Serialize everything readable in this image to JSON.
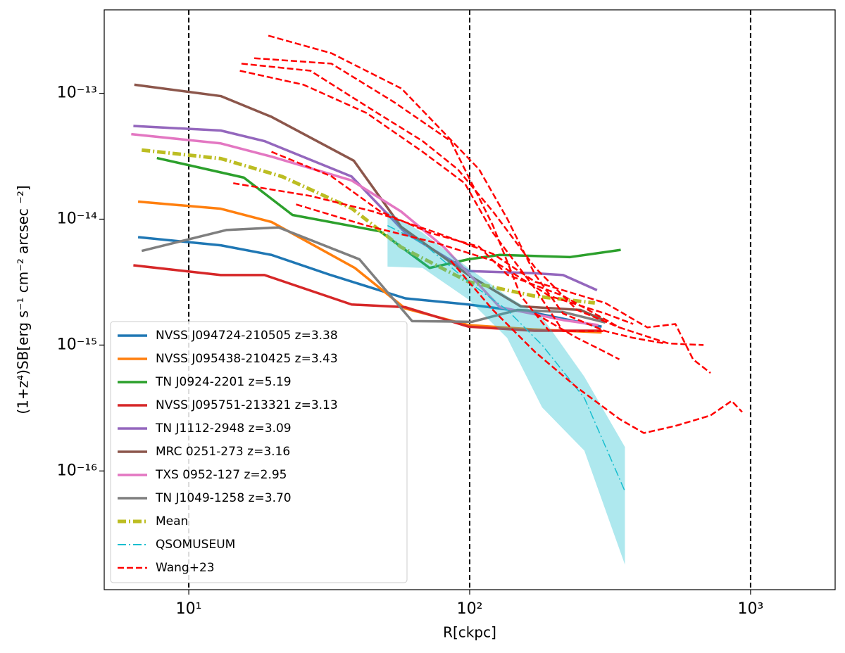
{
  "chart_data": {
    "type": "line",
    "xlabel": "R[ckpc]",
    "ylabel": "(1+z⁴)SB[erg s⁻¹ cm⁻² arcsec ⁻²]",
    "xscale": "log",
    "yscale": "log",
    "xlim": [
      5,
      2000
    ],
    "ylim": [
      1.14e-17,
      4.6e-13
    ],
    "xticks": [
      {
        "value": 10,
        "label": "10¹"
      },
      {
        "value": 100,
        "label": "10²"
      },
      {
        "value": 1000,
        "label": "10³"
      }
    ],
    "yticks": [
      {
        "value": 1e-16,
        "label": "10⁻¹⁶"
      },
      {
        "value": 1e-15,
        "label": "10⁻¹⁵"
      },
      {
        "value": 1e-14,
        "label": "10⁻¹⁴"
      },
      {
        "value": 1e-13,
        "label": "10⁻¹³"
      }
    ],
    "vlines": [
      10,
      100,
      1000
    ],
    "legend": "lower left",
    "series": [
      {
        "name": "NVSS J094724-210505 z=3.38",
        "color": "#1f77b4",
        "linestyle": "solid",
        "x": [
          6.6,
          13,
          19.7,
          32,
          59,
          99,
          170,
          295
        ],
        "values": [
          7.2e-15,
          6.2e-15,
          5.2e-15,
          3.6e-15,
          2.35e-15,
          2.1e-15,
          1.8e-15,
          1.4e-15
        ]
      },
      {
        "name": "NVSS J095438-210425 z=3.43",
        "color": "#ff7f0e",
        "linestyle": "solid",
        "x": [
          6.6,
          13,
          19.7,
          39,
          59,
          99,
          170,
          295
        ],
        "values": [
          1.38e-14,
          1.21e-14,
          9.5e-15,
          4.1e-15,
          1.95e-15,
          1.44e-15,
          1.33e-15,
          1.26e-15
        ]
      },
      {
        "name": "TN J0924-2201 z=5.19",
        "color": "#2ca02c",
        "linestyle": "solid",
        "x": [
          7.7,
          15.7,
          23.4,
          48,
          72,
          99,
          128,
          228,
          345
        ],
        "values": [
          3.06e-14,
          2.14e-14,
          1.08e-14,
          8e-15,
          4.1e-15,
          4.8e-15,
          5.2e-15,
          5e-15,
          5.7e-15
        ]
      },
      {
        "name": "NVSS J095751-213321 z=3.13",
        "color": "#d62728",
        "linestyle": "solid",
        "x": [
          6.35,
          13,
          18.6,
          38,
          59,
          99,
          170,
          295
        ],
        "values": [
          4.3e-15,
          3.6e-15,
          3.6e-15,
          2.1e-15,
          2e-15,
          1.4e-15,
          1.3e-15,
          1.3e-15
        ]
      },
      {
        "name": "TN J1112-2948 z=3.09",
        "color": "#9467bd",
        "linestyle": "solid",
        "x": [
          6.35,
          13,
          18.6,
          38,
          59,
          99,
          170,
          215,
          284
        ],
        "values": [
          5.5e-14,
          5.06e-14,
          4.17e-14,
          2.18e-14,
          7.8e-15,
          3.87e-15,
          3.72e-15,
          3.6e-15,
          2.73e-15
        ]
      },
      {
        "name": "MRC 0251-273 z=3.16",
        "color": "#8c564b",
        "linestyle": "solid",
        "x": [
          6.4,
          13,
          19.7,
          38.7,
          57,
          99,
          152,
          248,
          300
        ],
        "values": [
          1.17e-13,
          9.5e-14,
          6.5e-14,
          2.91e-14,
          8.7e-15,
          3.6e-15,
          2.03e-15,
          1.9e-15,
          1.58e-15
        ]
      },
      {
        "name": "TXS 0952-127 z=2.95",
        "color": "#e377c2",
        "linestyle": "solid",
        "x": [
          6.24,
          13,
          19.7,
          38,
          57,
          81,
          128,
          215,
          287
        ],
        "values": [
          4.74e-14,
          4e-14,
          3.14e-14,
          2.03e-14,
          1.15e-14,
          6e-15,
          2e-15,
          1.58e-15,
          1.44e-15
        ]
      },
      {
        "name": "TN J1049-1258 z=3.70",
        "color": "#7f7f7f",
        "linestyle": "solid",
        "x": [
          6.8,
          13.6,
          20.9,
          40.5,
          62.4,
          102,
          148,
          215,
          304
        ],
        "values": [
          5.6e-15,
          8.2e-15,
          8.6e-15,
          4.8e-15,
          1.55e-15,
          1.53e-15,
          1.9e-15,
          1.83e-15,
          1.51e-15
        ]
      },
      {
        "name": "Mean",
        "color": "#bcbd22",
        "linestyle": "dashdot",
        "x": [
          6.8,
          13,
          21.5,
          38,
          57,
          99,
          170,
          279
        ],
        "values": [
          3.54e-14,
          3.03e-14,
          2.18e-14,
          1.22e-14,
          6e-15,
          3.18e-15,
          2.45e-15,
          2.16e-15
        ]
      },
      {
        "name": "QSOMUSEUM",
        "color": "#17becf",
        "linestyle": "dashdot",
        "x": [
          51,
          68,
          99,
          136,
          181,
          256,
          357
        ],
        "values": [
          8.9e-15,
          6.45e-15,
          3.18e-15,
          1.9e-15,
          1e-15,
          3.8e-16,
          6.9e-17
        ],
        "band_lower": [
          4.2e-15,
          4.1e-15,
          2.3e-15,
          1.14e-15,
          3.2e-16,
          1.45e-16,
          1.8e-17
        ],
        "band_upper": [
          1.15e-14,
          7.8e-15,
          4.1e-15,
          2.45e-15,
          1.67e-15,
          5.6e-16,
          1.55e-16
        ]
      },
      {
        "name": "Wang+23",
        "color": "#ff0000",
        "linestyle": "dashed",
        "x": [
          19.2,
          32.2,
          57.2,
          108,
          136,
          171,
          215,
          304,
          382,
          495,
          null,
          17.1,
          32.2,
          54,
          85.6,
          121,
          152,
          192,
          null,
          15.4,
          27.1,
          42.9,
          68,
          90.7,
          121,
          171,
          241,
          341,
          null,
          15.2,
          25.6,
          42.9,
          68,
          96,
          121,
          171,
          215,
          304,
          null,
          19.7,
          32.2,
          48.1,
          72,
          108,
          136,
          215,
          341,
          510,
          680,
          null,
          14.4,
          27.1,
          45.5,
          76.3,
          121,
          171,
          304,
          429,
          540,
          624,
          720,
          null,
          24.1,
          42.9,
          76.3,
          121,
          192,
          304,
          382,
          null,
          85.6,
          121,
          171,
          241,
          341,
          417,
          540,
          720,
          856,
          933,
          null,
          171,
          241,
          304,
          341
        ],
        "values": [
          2.87e-13,
          2.08e-13,
          1.09e-13,
          2.49e-14,
          1.01e-14,
          3.62e-15,
          1.78e-15,
          1.29e-15,
          1.14e-15,
          1.03e-15,
          null,
          1.9e-13,
          1.72e-13,
          8.46e-14,
          4.17e-14,
          8.9e-15,
          2.46e-15,
          1.29e-15,
          null,
          1.72e-13,
          1.51e-13,
          7.9e-14,
          4.17e-14,
          2.49e-14,
          1.15e-14,
          4.12e-15,
          1.9e-15,
          1.38e-15,
          null,
          1.51e-13,
          1.17e-13,
          6.98e-14,
          3.43e-14,
          1.93e-14,
          7.8e-15,
          2.8e-15,
          1.29e-15,
          1.29e-15,
          null,
          3.43e-14,
          2.19e-14,
          1.15e-14,
          7.8e-15,
          6.05e-15,
          3.62e-15,
          2.46e-15,
          1.38e-15,
          1.03e-15,
          1e-15,
          null,
          1.93e-14,
          1.53e-14,
          1.15e-14,
          7.8e-15,
          5.3e-15,
          3.18e-15,
          2.16e-15,
          1.38e-15,
          1.47e-15,
          7.7e-16,
          6e-16,
          null,
          1.31e-14,
          8.9e-15,
          6.46e-15,
          4.68e-15,
          2.46e-15,
          1.78e-15,
          1.47e-15,
          null,
          4.68e-15,
          1.9e-15,
          8.8e-16,
          4.6e-16,
          2.59e-16,
          2e-16,
          2.28e-16,
          2.76e-16,
          3.6e-16,
          2.94e-16,
          null,
          1.78e-15,
          1.14e-15,
          8.8e-16,
          7.7e-16
        ]
      }
    ]
  }
}
